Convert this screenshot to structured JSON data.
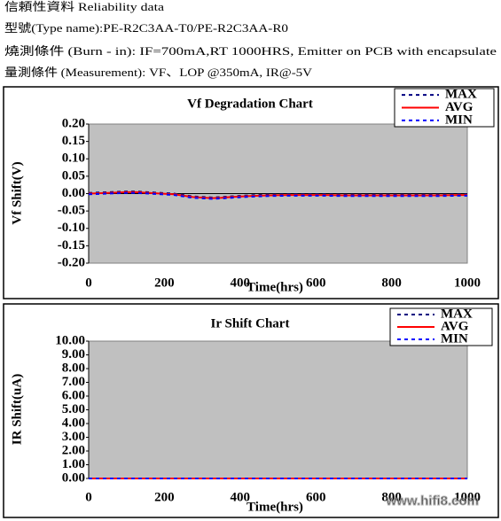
{
  "header": [
    "信頼性資料 Reliability data",
    "型號(Type name):PE-R2C3AA-T0/PE-R2C3AA-R0",
    "燒測條件 (Burn - in): IF=700mA,RT 1000HRS, Emitter on PCB with encapsulate",
    "量測條件 (Measurement): VF、LOP @350mA, IR@-5V"
  ],
  "watermark": "www.hifi8.com",
  "chart_data": [
    {
      "type": "line",
      "title": "Vf Degradation Chart",
      "x_label": "Time(hrs)",
      "y_label": "Vf Shift(V)",
      "x": [
        0,
        50,
        100,
        125,
        175,
        225,
        275,
        325,
        350,
        375,
        425,
        475,
        525,
        575,
        625,
        675,
        725,
        775,
        825,
        875,
        925,
        975,
        1000
      ],
      "series": [
        {
          "name": "MAX",
          "color": "#000080",
          "values": [
            0.002,
            0.004,
            0.006,
            0.006,
            0.003,
            0.0,
            -0.008,
            -0.011,
            -0.01,
            -0.008,
            -0.005,
            -0.003,
            -0.002,
            -0.002,
            -0.002,
            -0.003,
            -0.003,
            -0.003,
            -0.003,
            -0.003,
            -0.003,
            -0.002,
            -0.002
          ]
        },
        {
          "name": "AVG",
          "color": "#ff0000",
          "values": [
            0,
            0.002,
            0.004,
            0.004,
            0.001,
            -0.002,
            -0.01,
            -0.013,
            -0.012,
            -0.01,
            -0.007,
            -0.005,
            -0.004,
            -0.004,
            -0.004,
            -0.005,
            -0.005,
            -0.005,
            -0.005,
            -0.005,
            -0.005,
            -0.004,
            -0.004
          ]
        },
        {
          "name": "MIN",
          "color": "#0000ff",
          "values": [
            -0.002,
            0.0,
            0.002,
            0.002,
            -0.001,
            -0.004,
            -0.012,
            -0.015,
            -0.014,
            -0.012,
            -0.009,
            -0.007,
            -0.006,
            -0.006,
            -0.006,
            -0.007,
            -0.007,
            -0.007,
            -0.007,
            -0.007,
            -0.007,
            -0.006,
            -0.006
          ]
        }
      ],
      "xlim": [
        0,
        1000
      ],
      "xticks": [
        0,
        200,
        400,
        600,
        800,
        1000
      ],
      "ylim": [
        -0.2,
        0.2
      ],
      "yticks": [
        {
          "value": 0.2,
          "label": "0.20"
        },
        {
          "value": 0.15,
          "label": "0.15"
        },
        {
          "value": 0.1,
          "label": "0.10"
        },
        {
          "value": 0.05,
          "label": "0.05"
        },
        {
          "value": 0,
          "label": "0.00"
        },
        {
          "value": -0.05,
          "label": "-0.05"
        },
        {
          "value": -0.1,
          "label": "-0.10"
        },
        {
          "value": -0.15,
          "label": "-0.15"
        },
        {
          "value": -0.2,
          "label": "-0.20"
        }
      ],
      "grid": false,
      "legend": "top-right"
    },
    {
      "type": "line",
      "title": "Ir Shift Chart",
      "x_label": "Time(hrs)",
      "y_label": "IR Shift(uA)",
      "x": [
        0,
        168,
        336,
        500,
        672,
        840,
        1000
      ],
      "series": [
        {
          "name": "MAX",
          "color": "#000080",
          "values": [
            0,
            0,
            0,
            0,
            0,
            0,
            0
          ]
        },
        {
          "name": "AVG",
          "color": "#ff0000",
          "values": [
            0,
            0,
            0,
            0,
            0,
            0,
            0
          ]
        },
        {
          "name": "MIN",
          "color": "#0000ff",
          "values": [
            0,
            0,
            0,
            0,
            0,
            0,
            0
          ]
        }
      ],
      "xlim": [
        0,
        1000
      ],
      "xticks": [
        0,
        200,
        400,
        600,
        800,
        1000
      ],
      "ylim": [
        0,
        10
      ],
      "yticks": [
        {
          "value": 10,
          "label": "10.00"
        },
        {
          "value": 9,
          "label": "9.00"
        },
        {
          "value": 8,
          "label": "8.00"
        },
        {
          "value": 7,
          "label": "7.00"
        },
        {
          "value": 6,
          "label": "6.00"
        },
        {
          "value": 5,
          "label": "5.00"
        },
        {
          "value": 4,
          "label": "4.00"
        },
        {
          "value": 3,
          "label": "3.00"
        },
        {
          "value": 2,
          "label": "2.00"
        },
        {
          "value": 1,
          "label": "1.00"
        },
        {
          "value": 0,
          "label": "0.00"
        }
      ],
      "grid": false,
      "legend": "top-right"
    }
  ]
}
